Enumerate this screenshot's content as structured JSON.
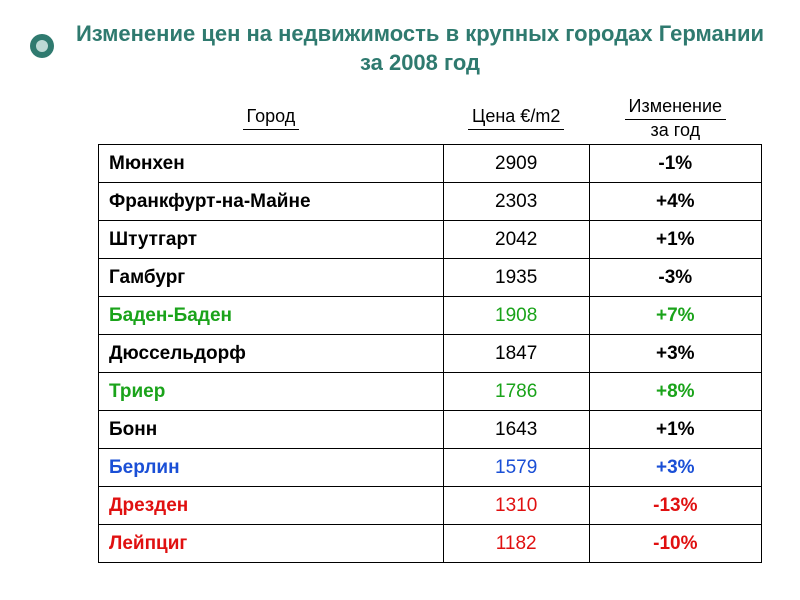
{
  "title": "Изменение цен на недвижимость в крупных городах Германии за 2008 год",
  "title_color": "#2f7a6f",
  "title_fontsize": 22,
  "bullet": {
    "outer_color": "#2f7a6f",
    "inner_color": "#bcd9d4"
  },
  "columns": {
    "city": "Город",
    "price": "Цена €/m2",
    "change_line1": "Изменение",
    "change_line2": "за год"
  },
  "header_text_color": "#000000",
  "row_colors": {
    "black": "#000000",
    "green": "#1aa31a",
    "blue": "#1a4fd6",
    "red": "#e01010"
  },
  "rows": [
    {
      "city": "Мюнхен",
      "price": "2909",
      "change": "-1%",
      "color": "black"
    },
    {
      "city": "Франкфурт-на-Майне",
      "price": "2303",
      "change": "+4%",
      "color": "black"
    },
    {
      "city": "Штутгарт",
      "price": "2042",
      "change": "+1%",
      "color": "black"
    },
    {
      "city": "Гамбург",
      "price": "1935",
      "change": "-3%",
      "color": "black"
    },
    {
      "city": "Баден-Баден",
      "price": "1908",
      "change": "+7%",
      "color": "green"
    },
    {
      "city": "Дюссельдорф",
      "price": "1847",
      "change": "+3%",
      "color": "black"
    },
    {
      "city": "Триер",
      "price": "1786",
      "change": "+8%",
      "color": "green"
    },
    {
      "city": "Бонн",
      "price": "1643",
      "change": "+1%",
      "color": "black"
    },
    {
      "city": "Берлин",
      "price": "1579",
      "change": "+3%",
      "color": "blue"
    },
    {
      "city": "Дрезден",
      "price": "1310",
      "change": "-13%",
      "color": "red"
    },
    {
      "city": "Лейпциг",
      "price": "1182",
      "change": "-10%",
      "color": "red"
    }
  ]
}
